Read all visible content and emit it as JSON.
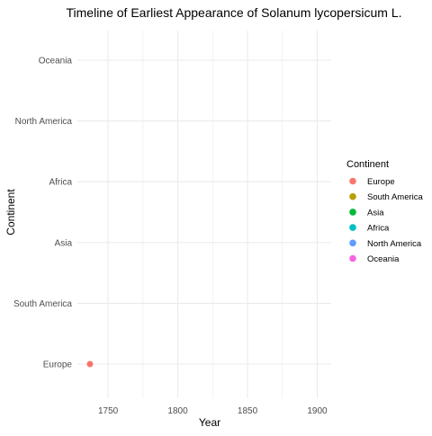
{
  "chart_data": {
    "type": "scatter",
    "title": "Timeline of Earliest Appearance of Solanum lycopersicum L.",
    "xlabel": "Year",
    "ylabel": "Continent",
    "xlim": [
      1728,
      1910
    ],
    "x_ticks": [
      1750,
      1800,
      1850,
      1900
    ],
    "categories": [
      "Europe",
      "South America",
      "Asia",
      "Africa",
      "North America",
      "Oceania"
    ],
    "grid": true,
    "legend": {
      "title": "Continent",
      "placement": "right",
      "entries": [
        {
          "label": "Europe",
          "color": "#F8766D"
        },
        {
          "label": "South America",
          "color": "#B79F00"
        },
        {
          "label": "Asia",
          "color": "#00BA38"
        },
        {
          "label": "Africa",
          "color": "#00BFC4"
        },
        {
          "label": "North America",
          "color": "#619CFF"
        },
        {
          "label": "Oceania",
          "color": "#F564E3"
        }
      ]
    },
    "points": [
      {
        "x": 1737,
        "y": "Europe",
        "color": "#F8766D"
      }
    ]
  }
}
